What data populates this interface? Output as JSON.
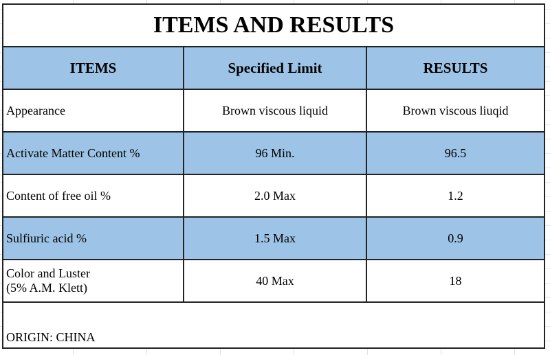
{
  "title": "ITEMS AND RESULTS",
  "headers": [
    "ITEMS",
    "Specified Limit",
    "RESULTS"
  ],
  "rows": [
    {
      "item": "Appearance",
      "limit": "Brown viscous liquid",
      "result": "Brown viscous liuqid",
      "shaded": false
    },
    {
      "item": "Activate Matter Content %",
      "limit": "96 Min.",
      "result": "96.5",
      "shaded": true
    },
    {
      "item": "Content of free oil %",
      "limit": "2.0 Max",
      "result": "1.2",
      "shaded": false
    },
    {
      "item": "Sulfiuric acid %",
      "limit": "1.5 Max",
      "result": "0.9",
      "shaded": true
    },
    {
      "item_line1": "Color and Luster",
      "item_line2": "(5% A.M. Klett)",
      "limit": "40 Max",
      "result": "18",
      "shaded": false
    }
  ],
  "origin": "ORIGIN: CHINA",
  "colors": {
    "header_fill": "#9dc3e6",
    "border": "#222222"
  }
}
